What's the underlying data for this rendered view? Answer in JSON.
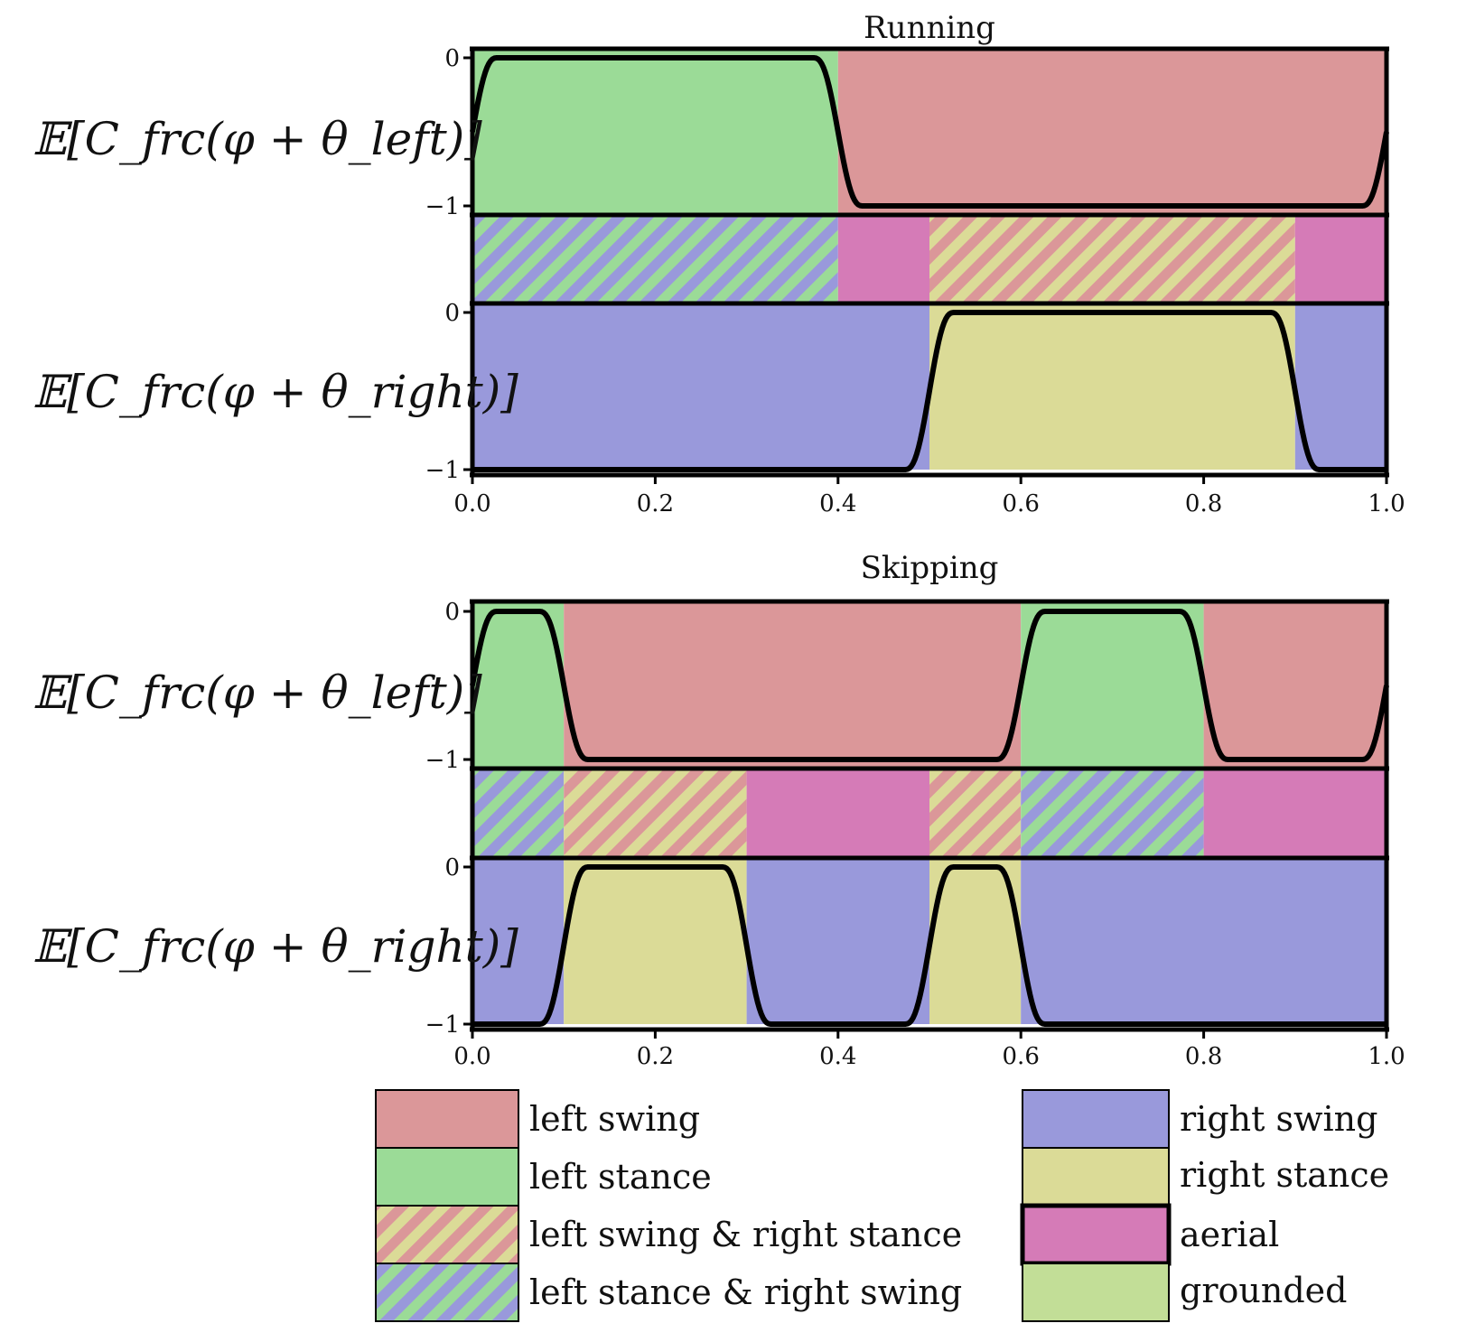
{
  "colors": {
    "left_swing": "#db9799",
    "left_stance": "#9bdb97",
    "right_swing": "#9999db",
    "right_stance": "#dbdb97",
    "aerial": "#d57bb7",
    "grounded": "#c2de97",
    "curve": "#000000"
  },
  "legend": {
    "left_swing": "left swing",
    "left_stance": "left stance",
    "left_swing_right_stance": "left swing & right stance",
    "left_stance_right_swing": "left stance & right swing",
    "right_swing": "right swing",
    "right_stance": "right stance",
    "aerial": "aerial",
    "grounded": "grounded"
  },
  "chart_data": [
    {
      "type": "area",
      "title": "Running",
      "ylabel_left": "𝔼[C_frc(φ + θ_left)]",
      "ylabel_right": "𝔼[C_frc(φ + θ_right)]",
      "xlim": [
        0.0,
        1.0
      ],
      "ylim": [
        -1,
        0
      ],
      "xticks": [
        "0.0",
        "0.2",
        "0.4",
        "0.6",
        "0.8",
        "1.0"
      ],
      "yticks": [
        "0",
        "−1"
      ],
      "left_stance_intervals": [
        [
          0.0,
          0.4
        ]
      ],
      "right_stance_intervals": [
        [
          0.5,
          0.9
        ]
      ],
      "left_curve_description": "0 during left stance, -1 during left swing",
      "right_curve_description": "0 during right stance, -1 during right swing",
      "phase_strip": [
        {
          "start": 0.0,
          "end": 0.4,
          "phase": "left_stance_right_swing"
        },
        {
          "start": 0.4,
          "end": 0.5,
          "phase": "aerial"
        },
        {
          "start": 0.5,
          "end": 0.9,
          "phase": "left_swing_right_stance"
        },
        {
          "start": 0.9,
          "end": 1.0,
          "phase": "aerial"
        }
      ]
    },
    {
      "type": "area",
      "title": "Skipping",
      "ylabel_left": "𝔼[C_frc(φ + θ_left)]",
      "ylabel_right": "𝔼[C_frc(φ + θ_right)]",
      "xlim": [
        0.0,
        1.0
      ],
      "ylim": [
        -1,
        0
      ],
      "xticks": [
        "0.0",
        "0.2",
        "0.4",
        "0.6",
        "0.8",
        "1.0"
      ],
      "yticks": [
        "0",
        "−1"
      ],
      "left_stance_intervals": [
        [
          0.0,
          0.1
        ],
        [
          0.6,
          0.8
        ]
      ],
      "right_stance_intervals": [
        [
          0.1,
          0.3
        ],
        [
          0.5,
          0.6
        ]
      ],
      "phase_strip": [
        {
          "start": 0.0,
          "end": 0.1,
          "phase": "left_stance_right_swing"
        },
        {
          "start": 0.1,
          "end": 0.3,
          "phase": "left_swing_right_stance"
        },
        {
          "start": 0.3,
          "end": 0.5,
          "phase": "aerial"
        },
        {
          "start": 0.5,
          "end": 0.6,
          "phase": "left_swing_right_stance"
        },
        {
          "start": 0.6,
          "end": 0.8,
          "phase": "left_stance_right_swing"
        },
        {
          "start": 0.8,
          "end": 1.0,
          "phase": "aerial"
        }
      ]
    }
  ]
}
